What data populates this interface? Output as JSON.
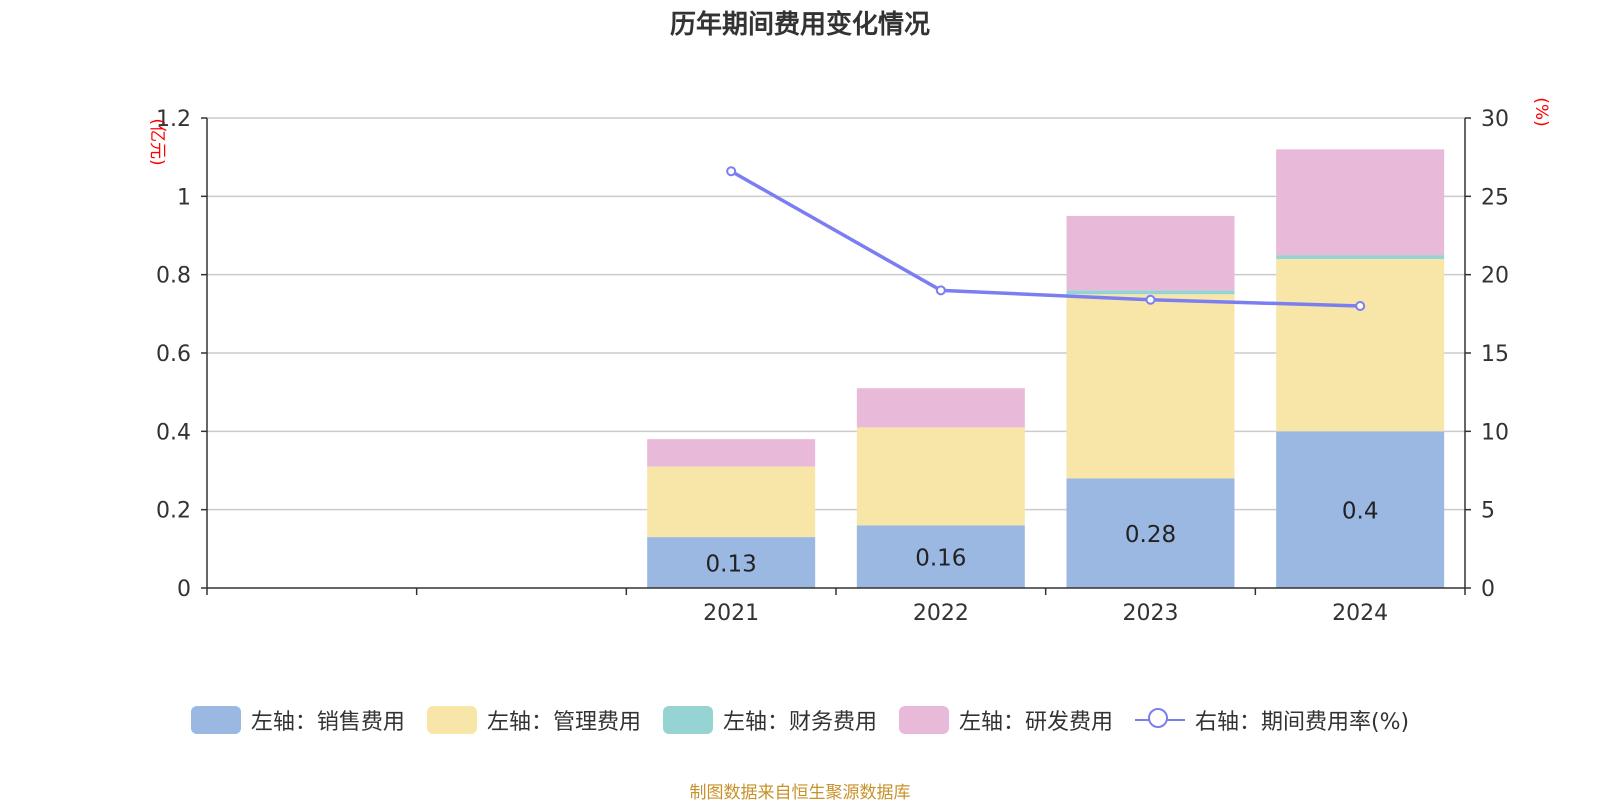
{
  "title": "历年期间费用变化情况",
  "left_unit": "(亿元)",
  "right_unit": "(%)",
  "source": "制图数据来自恒生聚源数据库",
  "colors": {
    "sales": "#9bb8e2",
    "admin": "#f7e6a8",
    "finance": "#96d3d3",
    "rd": "#e8b9d9",
    "rate": "#7b7ef0",
    "left_unit": "#ff0000",
    "source": "#c8922a"
  },
  "legend": [
    {
      "label": "左轴：销售费用",
      "color": "#9bb8e2",
      "kind": "bar"
    },
    {
      "label": "左轴：管理费用",
      "color": "#f7e6a8",
      "kind": "bar"
    },
    {
      "label": "左轴：财务费用",
      "color": "#96d3d3",
      "kind": "bar"
    },
    {
      "label": "左轴：研发费用",
      "color": "#e8b9d9",
      "kind": "bar"
    },
    {
      "label": "右轴：期间费用率(%)",
      "color": "#7b7ef0",
      "kind": "line"
    }
  ],
  "chart_data": {
    "type": "bar",
    "stacked": true,
    "categories": [
      "",
      "",
      "2021",
      "2022",
      "2023",
      "2024"
    ],
    "series": [
      {
        "name": "左轴：销售费用",
        "axis": "left",
        "values": [
          null,
          null,
          0.13,
          0.16,
          0.28,
          0.4
        ],
        "labels": [
          "",
          "",
          "0.13",
          "0.16",
          "0.28",
          "0.4"
        ]
      },
      {
        "name": "左轴：管理费用",
        "axis": "left",
        "values": [
          null,
          null,
          0.18,
          0.25,
          0.47,
          0.44
        ]
      },
      {
        "name": "左轴：财务费用",
        "axis": "left",
        "values": [
          null,
          null,
          0.0,
          0.0,
          0.01,
          0.01
        ]
      },
      {
        "name": "左轴：研发费用",
        "axis": "left",
        "values": [
          null,
          null,
          0.07,
          0.1,
          0.19,
          0.27
        ]
      },
      {
        "name": "右轴：期间费用率(%)",
        "axis": "right",
        "type": "line",
        "values": [
          null,
          null,
          26.6,
          19.0,
          18.4,
          18.0
        ]
      }
    ],
    "y_left": {
      "min": 0,
      "max": 1.2,
      "ticks": [
        "0",
        "0.2",
        "0.4",
        "0.6",
        "0.8",
        "1",
        "1.2"
      ],
      "tick_values": [
        0,
        0.2,
        0.4,
        0.6,
        0.8,
        1.0,
        1.2
      ]
    },
    "y_right": {
      "min": 0,
      "max": 30,
      "ticks": [
        "0",
        "5",
        "10",
        "15",
        "20",
        "25",
        "30"
      ],
      "tick_values": [
        0,
        5,
        10,
        15,
        20,
        25,
        30
      ]
    },
    "grid": true,
    "legend_position": "bottom"
  }
}
